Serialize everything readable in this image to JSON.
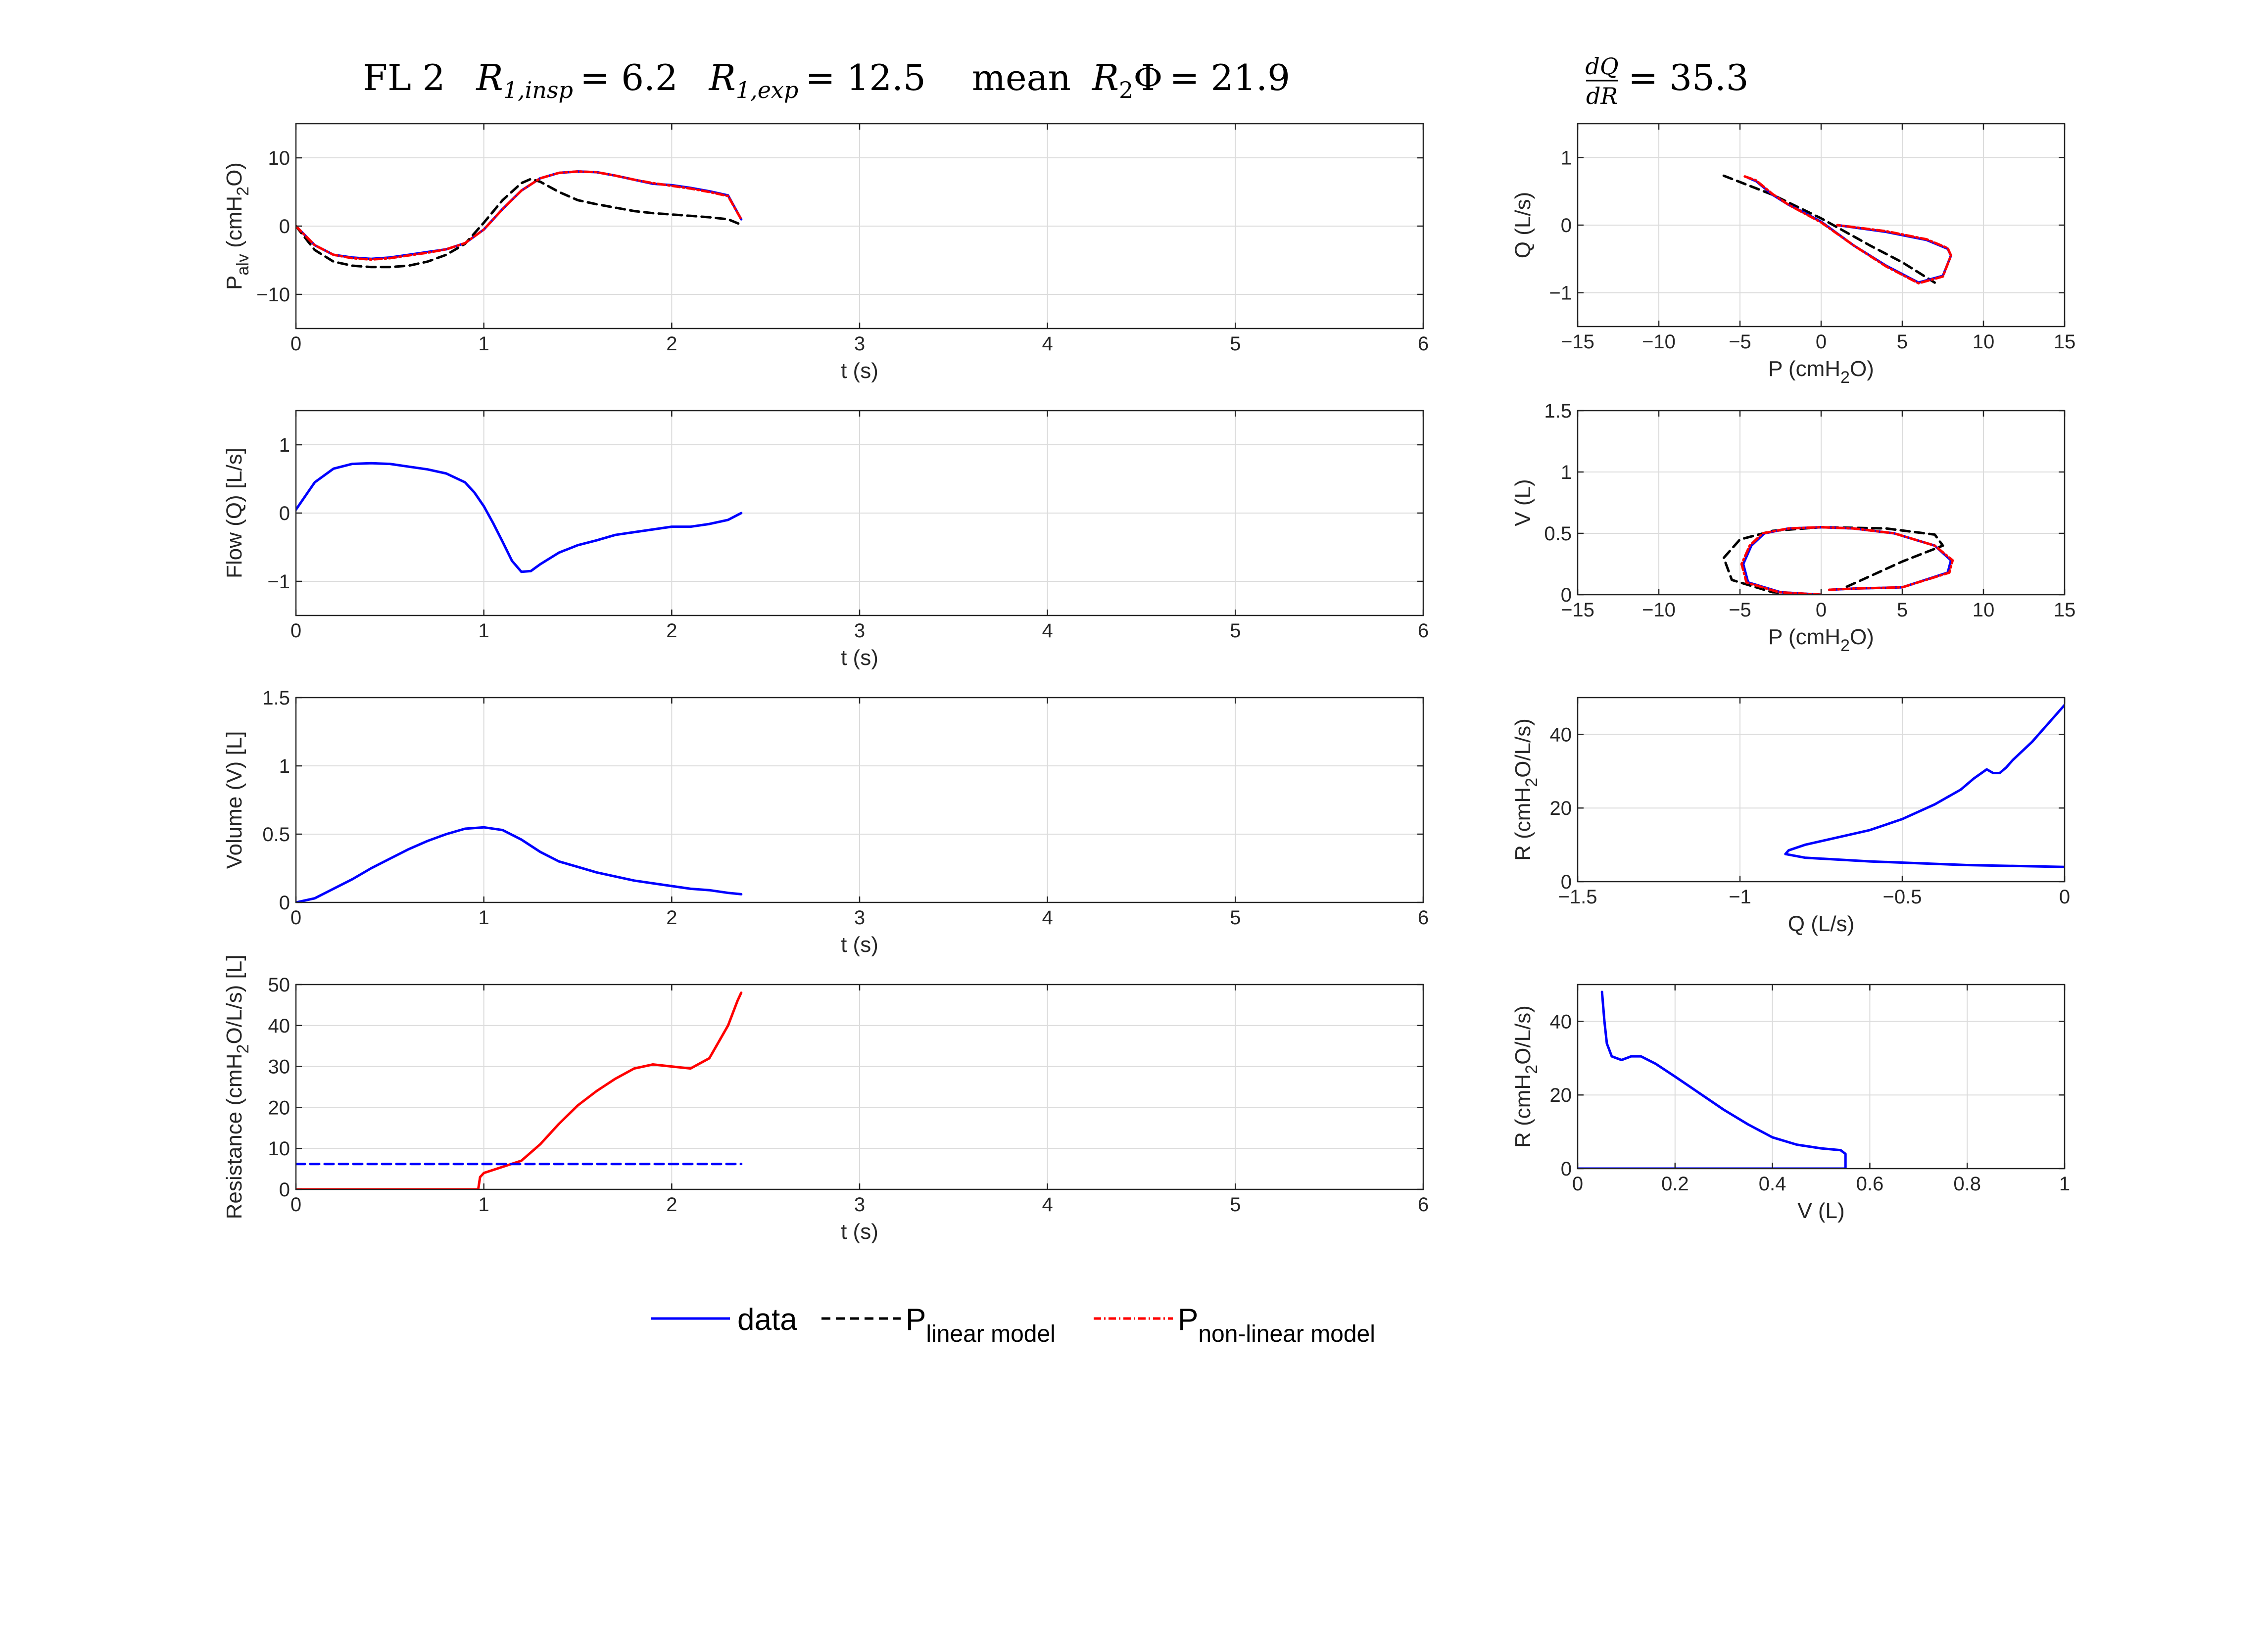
{
  "title": {
    "run": "FL 2",
    "r1_insp_label": "R",
    "r1_insp_sub": "1,insp",
    "r1_insp_value": "= 6.2",
    "r1_exp_label": "R",
    "r1_exp_sub": "1,exp",
    "r1_exp_value": "= 12.5",
    "mean_label": "mean",
    "r2phi_label": "R",
    "r2phi_sub": "2",
    "r2phi_symbol": "Φ",
    "r2phi_value": "= 21.9",
    "dqdr_num": "dQ",
    "dqdr_den": "dR",
    "dqdr_value": "= 35.3"
  },
  "colors": {
    "data": "#0000ff",
    "linear": "#000000",
    "nonlinear": "#ff0000",
    "grid": "#dcdcdc",
    "axis": "#262626"
  },
  "legend": {
    "data": "data",
    "linear_main": "P",
    "linear_sub": "linear model",
    "nonlinear_main": "P",
    "nonlinear_sub": "non-linear model"
  },
  "chart_data": [
    {
      "id": "palv",
      "type": "line",
      "xlabel": "t (s)",
      "ylabel_main": "P",
      "ylabel_sub": "alv",
      "ylabel_rest": " (cmH",
      "ylabel_sub2": "2",
      "ylabel_end": "O)",
      "xlim": [
        0,
        6
      ],
      "ylim": [
        -15,
        15
      ],
      "xticks": [
        0,
        1,
        2,
        3,
        4,
        5,
        6
      ],
      "yticks": [
        -10,
        0,
        10
      ],
      "grid": true,
      "series": [
        {
          "name": "data",
          "style": "data",
          "x": [
            0,
            0.1,
            0.2,
            0.3,
            0.4,
            0.5,
            0.6,
            0.7,
            0.8,
            0.9,
            1.0,
            1.1,
            1.2,
            1.3,
            1.4,
            1.5,
            1.6,
            1.7,
            1.8,
            1.9,
            2.0,
            2.1,
            2.2,
            2.3,
            2.37
          ],
          "y": [
            0,
            -2.8,
            -4.2,
            -4.6,
            -4.8,
            -4.6,
            -4.2,
            -3.8,
            -3.4,
            -2.5,
            -0.5,
            2.5,
            5.2,
            7.0,
            7.8,
            8.0,
            7.9,
            7.4,
            6.8,
            6.2,
            6.0,
            5.6,
            5.1,
            4.5,
            1.0
          ]
        },
        {
          "name": "P linear model",
          "style": "linear",
          "x": [
            0,
            0.1,
            0.2,
            0.3,
            0.4,
            0.5,
            0.6,
            0.7,
            0.8,
            0.9,
            1.0,
            1.1,
            1.2,
            1.25,
            1.3,
            1.4,
            1.5,
            1.6,
            1.7,
            1.8,
            1.9,
            2.0,
            2.1,
            2.2,
            2.3,
            2.37
          ],
          "y": [
            0,
            -3.5,
            -5.2,
            -5.8,
            -6.0,
            -6.0,
            -5.8,
            -5.2,
            -4.2,
            -2.6,
            0.5,
            3.8,
            6.3,
            6.9,
            6.5,
            5.0,
            3.8,
            3.2,
            2.7,
            2.2,
            1.9,
            1.7,
            1.5,
            1.3,
            1.0,
            0.2
          ]
        },
        {
          "name": "P non-linear model",
          "style": "nonlinear",
          "x": [
            0,
            0.1,
            0.2,
            0.3,
            0.4,
            0.5,
            0.6,
            0.7,
            0.8,
            0.9,
            1.0,
            1.1,
            1.2,
            1.3,
            1.4,
            1.5,
            1.6,
            1.7,
            1.8,
            1.9,
            2.0,
            2.1,
            2.2,
            2.3,
            2.37
          ],
          "y": [
            0,
            -2.8,
            -4.2,
            -4.7,
            -4.9,
            -4.7,
            -4.3,
            -3.9,
            -3.4,
            -2.5,
            -0.5,
            2.5,
            5.2,
            7.0,
            7.8,
            8.0,
            7.9,
            7.4,
            6.8,
            6.3,
            5.9,
            5.5,
            5.0,
            4.4,
            1.0
          ]
        }
      ]
    },
    {
      "id": "flow",
      "type": "line",
      "xlabel": "t (s)",
      "ylabel_main": "Flow (Q) [L/s]",
      "xlim": [
        0,
        6
      ],
      "ylim": [
        -1.5,
        1.5
      ],
      "xticks": [
        0,
        1,
        2,
        3,
        4,
        5,
        6
      ],
      "yticks": [
        -1,
        0,
        1
      ],
      "grid": true,
      "series": [
        {
          "name": "data",
          "style": "data",
          "x": [
            0,
            0.1,
            0.2,
            0.3,
            0.4,
            0.5,
            0.6,
            0.7,
            0.8,
            0.9,
            0.95,
            1.0,
            1.05,
            1.1,
            1.15,
            1.2,
            1.25,
            1.3,
            1.4,
            1.5,
            1.6,
            1.7,
            1.8,
            1.9,
            2.0,
            2.1,
            2.2,
            2.3,
            2.37
          ],
          "y": [
            0.05,
            0.45,
            0.65,
            0.72,
            0.73,
            0.72,
            0.68,
            0.64,
            0.58,
            0.45,
            0.3,
            0.1,
            -0.15,
            -0.42,
            -0.7,
            -0.86,
            -0.85,
            -0.75,
            -0.58,
            -0.47,
            -0.4,
            -0.32,
            -0.28,
            -0.24,
            -0.2,
            -0.2,
            -0.16,
            -0.1,
            0.0
          ]
        }
      ]
    },
    {
      "id": "volume",
      "type": "line",
      "xlabel": "t (s)",
      "ylabel_main": "Volume (V) [L]",
      "xlim": [
        0,
        6
      ],
      "ylim": [
        0,
        1.5
      ],
      "xticks": [
        0,
        1,
        2,
        3,
        4,
        5,
        6
      ],
      "yticks": [
        0,
        0.5,
        1,
        1.5
      ],
      "grid": true,
      "series": [
        {
          "name": "data",
          "style": "data",
          "x": [
            0,
            0.1,
            0.2,
            0.3,
            0.4,
            0.5,
            0.6,
            0.7,
            0.8,
            0.9,
            1.0,
            1.1,
            1.2,
            1.3,
            1.4,
            1.5,
            1.6,
            1.7,
            1.8,
            1.9,
            2.0,
            2.1,
            2.2,
            2.3,
            2.37
          ],
          "y": [
            0,
            0.03,
            0.1,
            0.17,
            0.25,
            0.32,
            0.39,
            0.45,
            0.5,
            0.54,
            0.55,
            0.53,
            0.46,
            0.37,
            0.3,
            0.26,
            0.22,
            0.19,
            0.16,
            0.14,
            0.12,
            0.1,
            0.09,
            0.07,
            0.06
          ]
        }
      ]
    },
    {
      "id": "resistance",
      "type": "line",
      "xlabel": "t (s)",
      "ylabel_main": "Resistance (cmH",
      "ylabel_sub": "2",
      "ylabel_rest": "O/L/s) [L]",
      "xlim": [
        0,
        6
      ],
      "ylim": [
        0,
        50
      ],
      "xticks": [
        0,
        1,
        2,
        3,
        4,
        5,
        6
      ],
      "yticks": [
        0,
        10,
        20,
        30,
        40,
        50
      ],
      "grid": true,
      "series": [
        {
          "name": "non-linear R",
          "style": "nonlinear_solid",
          "x": [
            0,
            0.97,
            0.98,
            1.0,
            1.1,
            1.2,
            1.3,
            1.4,
            1.5,
            1.6,
            1.7,
            1.8,
            1.9,
            2.0,
            2.1,
            2.2,
            2.25,
            2.3,
            2.35,
            2.37
          ],
          "y": [
            0,
            0,
            3.0,
            4.0,
            5.5,
            7.0,
            11.0,
            16.0,
            20.5,
            24.0,
            27.0,
            29.5,
            30.5,
            30.0,
            29.5,
            32.0,
            36.0,
            40.0,
            46.0,
            48.0
          ]
        },
        {
          "name": "linear R",
          "style": "data_dashed",
          "x": [
            0,
            2.37
          ],
          "y": [
            6.2,
            6.2
          ]
        }
      ]
    },
    {
      "id": "qp",
      "type": "line",
      "xlabel_main": "P (cmH",
      "xlabel_sub": "2",
      "xlabel_rest": "O)",
      "ylabel_main": "Q (L/s)",
      "xlim": [
        -15,
        15
      ],
      "ylim": [
        -1.5,
        1.5
      ],
      "xticks": [
        -15,
        -10,
        -5,
        0,
        5,
        10,
        15
      ],
      "yticks": [
        -1,
        0,
        1
      ],
      "grid": true,
      "series": [
        {
          "name": "P linear model",
          "style": "linear",
          "x": [
            -6.0,
            -3.0,
            0,
            3.0,
            5.0,
            7.0
          ],
          "y": [
            0.73,
            0.45,
            0.1,
            -0.3,
            -0.55,
            -0.85
          ]
        },
        {
          "name": "data",
          "style": "data",
          "x": [
            -4.5,
            -4.0,
            -3.0,
            -2.0,
            -1.0,
            0.0,
            2.0,
            4.0,
            6.0,
            7.5,
            8.0,
            7.8,
            6.5,
            4.0,
            1.0
          ],
          "y": [
            0.7,
            0.65,
            0.45,
            0.3,
            0.18,
            0.05,
            -0.3,
            -0.6,
            -0.85,
            -0.75,
            -0.45,
            -0.35,
            -0.22,
            -0.1,
            0.0
          ]
        },
        {
          "name": "P non-linear model",
          "style": "nonlinear",
          "x": [
            -4.7,
            -4.0,
            -3.0,
            -2.0,
            -1.0,
            0.0,
            2.0,
            4.0,
            6.0,
            7.5,
            8.0,
            7.8,
            6.5,
            4.0,
            1.0
          ],
          "y": [
            0.72,
            0.66,
            0.46,
            0.3,
            0.17,
            0.04,
            -0.3,
            -0.61,
            -0.86,
            -0.76,
            -0.45,
            -0.34,
            -0.21,
            -0.09,
            0.0
          ]
        }
      ]
    },
    {
      "id": "vp",
      "type": "line",
      "xlabel_main": "P (cmH",
      "xlabel_sub": "2",
      "xlabel_rest": "O)",
      "ylabel_main": "V (L)",
      "xlim": [
        -15,
        15
      ],
      "ylim": [
        0,
        1.5
      ],
      "xticks": [
        -15,
        -10,
        -5,
        0,
        5,
        10,
        15
      ],
      "yticks": [
        0,
        0.5,
        1,
        1.5
      ],
      "grid": true,
      "series": [
        {
          "name": "P linear model",
          "style": "linear",
          "x": [
            0,
            -3.0,
            -5.5,
            -6.0,
            -5.0,
            -3.0,
            0,
            4.0,
            7.0,
            7.5,
            5.0,
            3.0,
            1.5
          ],
          "y": [
            0,
            0.02,
            0.12,
            0.3,
            0.45,
            0.52,
            0.55,
            0.54,
            0.49,
            0.4,
            0.27,
            0.15,
            0.06
          ]
        },
        {
          "name": "data",
          "style": "data",
          "x": [
            0,
            -2.5,
            -4.5,
            -4.8,
            -4.3,
            -3.5,
            -2.0,
            0,
            2.0,
            4.5,
            7.0,
            8.0,
            7.8,
            5.0,
            2.0,
            0.5
          ],
          "y": [
            0,
            0.02,
            0.1,
            0.25,
            0.4,
            0.5,
            0.54,
            0.55,
            0.54,
            0.5,
            0.4,
            0.28,
            0.18,
            0.06,
            0.05,
            0.04
          ]
        },
        {
          "name": "P non-linear model",
          "style": "nonlinear",
          "x": [
            0,
            -2.6,
            -4.6,
            -4.9,
            -4.4,
            -3.6,
            -2.0,
            0,
            2.0,
            4.5,
            7.0,
            8.1,
            7.9,
            5.0,
            2.0,
            0.5
          ],
          "y": [
            0,
            0.02,
            0.1,
            0.25,
            0.4,
            0.5,
            0.54,
            0.55,
            0.54,
            0.5,
            0.4,
            0.28,
            0.18,
            0.06,
            0.05,
            0.04
          ]
        }
      ]
    },
    {
      "id": "rq",
      "type": "line",
      "xlabel_main": "Q (L/s)",
      "ylabel_main": "R (cmH",
      "ylabel_sub": "2",
      "ylabel_rest": "O/L/s)",
      "xlim": [
        -1.5,
        0
      ],
      "ylim": [
        0,
        50
      ],
      "xticks": [
        -1.5,
        -1,
        -0.5,
        0
      ],
      "yticks": [
        0,
        20,
        40
      ],
      "grid": true,
      "series": [
        {
          "name": "data",
          "style": "data",
          "x": [
            0,
            -0.3,
            -0.6,
            -0.8,
            -0.86,
            -0.85,
            -0.8,
            -0.7,
            -0.6,
            -0.5,
            -0.4,
            -0.32,
            -0.28,
            -0.24,
            -0.22,
            -0.2,
            -0.18,
            -0.16,
            -0.1,
            -0.05,
            0
          ],
          "y": [
            4.0,
            4.5,
            5.5,
            6.5,
            7.5,
            8.5,
            10.0,
            12.0,
            14.0,
            17.0,
            21.0,
            25.0,
            28.0,
            30.5,
            29.5,
            29.5,
            31.0,
            33.0,
            38.0,
            43.0,
            48.0
          ]
        }
      ]
    },
    {
      "id": "rv",
      "type": "line",
      "xlabel_main": "V (L)",
      "ylabel_main": "R (cmH",
      "ylabel_sub": "2",
      "ylabel_rest": "O/L/s)",
      "xlim": [
        0,
        1
      ],
      "ylim": [
        0,
        50
      ],
      "xticks": [
        0,
        0.2,
        0.4,
        0.6,
        0.8,
        1
      ],
      "yticks": [
        0,
        20,
        40
      ],
      "grid": true,
      "series": [
        {
          "name": "data",
          "style": "data",
          "x": [
            0.0,
            0.55,
            0.55,
            0.54,
            0.5,
            0.45,
            0.4,
            0.35,
            0.3,
            0.25,
            0.2,
            0.16,
            0.13,
            0.11,
            0.09,
            0.07,
            0.06,
            0.055,
            0.05
          ],
          "y": [
            0,
            0,
            4.0,
            5.0,
            5.5,
            6.5,
            8.5,
            12.0,
            16.0,
            20.5,
            25.0,
            28.5,
            30.5,
            30.5,
            29.5,
            30.5,
            34.0,
            40.0,
            48.0
          ]
        }
      ]
    }
  ]
}
